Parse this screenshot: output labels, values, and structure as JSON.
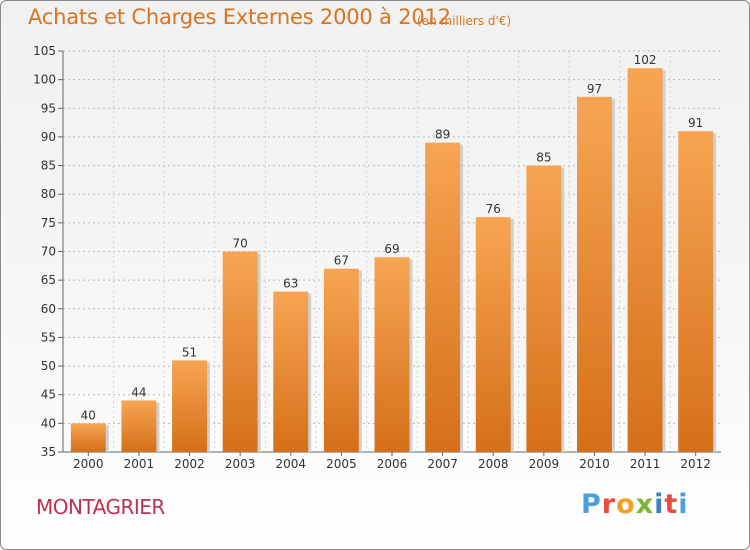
{
  "header": {
    "title": "Achats et Charges Externes 2000 à 2012",
    "subtitle": "(en milliers d'€)"
  },
  "footer": {
    "location": "MONTAGRIER",
    "brand": "Proxiti",
    "brand_colors": [
      "#4b9fdc",
      "#e94b3c",
      "#f0a020",
      "#7ab92d",
      "#3b82c4"
    ]
  },
  "colors": {
    "bar_top": "#f7a553",
    "bar_bottom": "#d56f19",
    "title": "#d9731f",
    "location": "#c0304f",
    "grid": "#bbbbbb"
  },
  "chart_data": {
    "type": "bar",
    "title": "Achats et Charges Externes 2000 à 2012",
    "subtitle": "(en milliers d'€)",
    "xlabel": "",
    "ylabel": "",
    "categories": [
      "2000",
      "2001",
      "2002",
      "2003",
      "2004",
      "2005",
      "2006",
      "2007",
      "2008",
      "2009",
      "2010",
      "2011",
      "2012"
    ],
    "values": [
      40,
      44,
      51,
      70,
      63,
      67,
      69,
      89,
      76,
      85,
      97,
      102,
      91
    ],
    "ylim": [
      35,
      105
    ],
    "yticks": [
      35,
      40,
      45,
      50,
      55,
      60,
      65,
      70,
      75,
      80,
      85,
      90,
      95,
      100,
      105
    ],
    "grid": true,
    "legend": "none"
  }
}
